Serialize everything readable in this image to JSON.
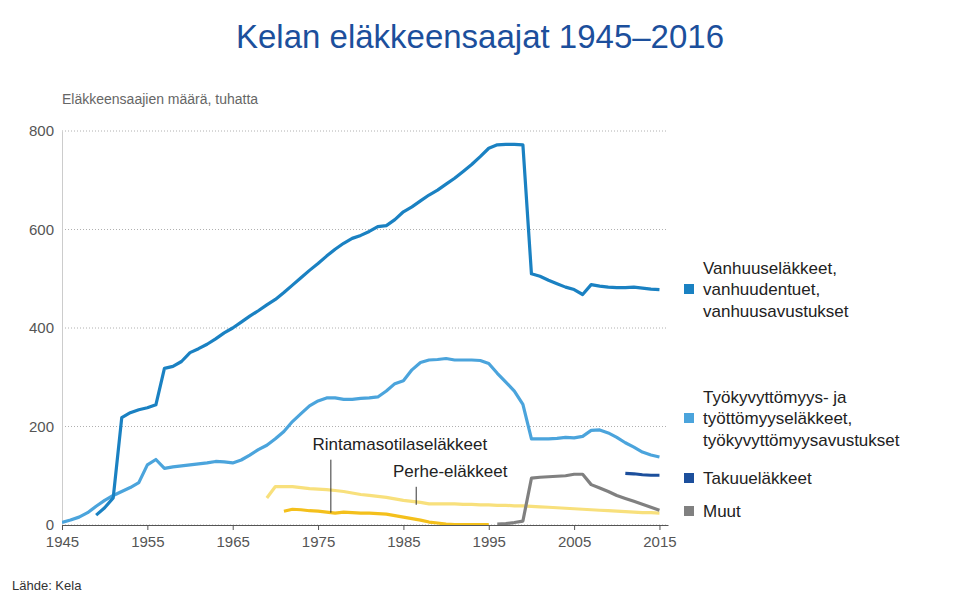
{
  "chart_data": {
    "type": "line",
    "title": "Kelan eläkkeensaajat 1945–2016",
    "y_label": "Eläkkeensaajien määrä, tuhatta",
    "source": "Lähde: Kela",
    "x": [
      1945,
      1946,
      1947,
      1948,
      1949,
      1950,
      1951,
      1952,
      1953,
      1954,
      1955,
      1956,
      1957,
      1958,
      1959,
      1960,
      1961,
      1962,
      1963,
      1964,
      1965,
      1966,
      1967,
      1968,
      1969,
      1970,
      1971,
      1972,
      1973,
      1974,
      1975,
      1976,
      1977,
      1978,
      1979,
      1980,
      1981,
      1982,
      1983,
      1984,
      1985,
      1986,
      1987,
      1988,
      1989,
      1990,
      1991,
      1992,
      1993,
      1994,
      1995,
      1996,
      1997,
      1998,
      1999,
      2000,
      2001,
      2002,
      2003,
      2004,
      2005,
      2006,
      2007,
      2008,
      2009,
      2010,
      2011,
      2012,
      2013,
      2014,
      2015
    ],
    "xlim": [
      1945,
      2016
    ],
    "xticks": [
      1945,
      1955,
      1965,
      1975,
      1985,
      1995,
      2005,
      2015
    ],
    "ylim": [
      0,
      800
    ],
    "yticks": [
      0,
      200,
      400,
      600,
      800
    ],
    "grid": true,
    "legend": "right",
    "series": [
      {
        "name": "Vanhuuseläkkeet,\nvanhuudentuet,\nvanhuusavustukset",
        "color": "#1a81c2",
        "values": [
          null,
          null,
          null,
          null,
          20,
          35,
          55,
          218,
          228,
          234,
          238,
          244,
          318,
          322,
          332,
          350,
          358,
          367,
          378,
          390,
          400,
          412,
          424,
          435,
          447,
          458,
          472,
          487,
          502,
          517,
          531,
          546,
          560,
          572,
          582,
          588,
          596,
          606,
          608,
          620,
          636,
          646,
          658,
          670,
          680,
          692,
          704,
          718,
          732,
          748,
          765,
          772,
          773,
          773,
          772,
          510,
          505,
          497,
          490,
          483,
          478,
          468,
          488,
          485,
          483,
          482,
          482,
          483,
          481,
          479,
          478
        ]
      },
      {
        "name": "Työkyvyttömyys- ja\ntyöttömyyseläkkeet,\ntyökyvyttömyysavustukset",
        "color": "#4ba4dc",
        "values": [
          5,
          10,
          16,
          25,
          38,
          50,
          60,
          68,
          76,
          86,
          122,
          133,
          115,
          118,
          120,
          122,
          124,
          126,
          129,
          128,
          126,
          132,
          142,
          153,
          162,
          175,
          190,
          210,
          226,
          242,
          252,
          258,
          258,
          255,
          255,
          257,
          258,
          260,
          272,
          287,
          293,
          315,
          330,
          335,
          336,
          338,
          335,
          335,
          335,
          334,
          328,
          308,
          290,
          272,
          245,
          175,
          175,
          175,
          176,
          178,
          177,
          180,
          192,
          193,
          187,
          178,
          167,
          158,
          148,
          142,
          138
        ]
      },
      {
        "name": "Takuueläkkeet",
        "color": "#1c4f9c",
        "values": [
          null,
          null,
          null,
          null,
          null,
          null,
          null,
          null,
          null,
          null,
          null,
          null,
          null,
          null,
          null,
          null,
          null,
          null,
          null,
          null,
          null,
          null,
          null,
          null,
          null,
          null,
          null,
          null,
          null,
          null,
          null,
          null,
          null,
          null,
          null,
          null,
          null,
          null,
          null,
          null,
          null,
          null,
          null,
          null,
          null,
          null,
          null,
          null,
          null,
          null,
          null,
          null,
          null,
          null,
          null,
          null,
          null,
          null,
          null,
          null,
          null,
          null,
          null,
          null,
          null,
          null,
          105,
          104,
          102,
          101,
          101
        ]
      },
      {
        "name": "Muut",
        "color": "#808080",
        "values": [
          null,
          null,
          null,
          null,
          null,
          null,
          null,
          null,
          null,
          null,
          null,
          null,
          null,
          null,
          null,
          null,
          null,
          null,
          null,
          null,
          null,
          null,
          null,
          null,
          null,
          null,
          null,
          null,
          null,
          null,
          null,
          null,
          null,
          null,
          null,
          null,
          null,
          null,
          null,
          null,
          null,
          null,
          null,
          null,
          null,
          null,
          null,
          null,
          null,
          null,
          null,
          2,
          3,
          5,
          8,
          95,
          97,
          98,
          99,
          100,
          103,
          103,
          82,
          75,
          68,
          60,
          54,
          48,
          42,
          36,
          30
        ]
      },
      {
        "color": "#f4c01c",
        "values": [
          null,
          null,
          null,
          null,
          null,
          null,
          null,
          null,
          null,
          null,
          null,
          null,
          null,
          null,
          null,
          null,
          null,
          null,
          null,
          null,
          null,
          null,
          null,
          null,
          null,
          null,
          28,
          32,
          31,
          29,
          28,
          26,
          24,
          26,
          25,
          24,
          24,
          23,
          22,
          19,
          16,
          13,
          10,
          6,
          4,
          2,
          1,
          1,
          1,
          1,
          1,
          null,
          null,
          null,
          null,
          null,
          null,
          null,
          null,
          null,
          null,
          null,
          null,
          null,
          null,
          null,
          null,
          null,
          null,
          null,
          null
        ]
      },
      {
        "color": "#f8e07c",
        "values": [
          null,
          null,
          null,
          null,
          null,
          null,
          null,
          null,
          null,
          null,
          null,
          null,
          null,
          null,
          null,
          null,
          null,
          null,
          null,
          null,
          null,
          null,
          null,
          null,
          55,
          78,
          78,
          78,
          76,
          74,
          73,
          72,
          70,
          68,
          65,
          62,
          60,
          58,
          56,
          53,
          50,
          48,
          46,
          43,
          43,
          43,
          43,
          42,
          42,
          41,
          41,
          40,
          40,
          39,
          39,
          38,
          37,
          36,
          35,
          34,
          33,
          32,
          31,
          30,
          29,
          28,
          27,
          26,
          25,
          25,
          24
        ]
      }
    ],
    "annotations": [
      {
        "text": "Rintamasotilaseläkkeet",
        "x": 1976.5,
        "y": 25
      },
      {
        "text": "Perhe-eläkkeet",
        "x": 1986.5,
        "y": 41
      }
    ]
  }
}
